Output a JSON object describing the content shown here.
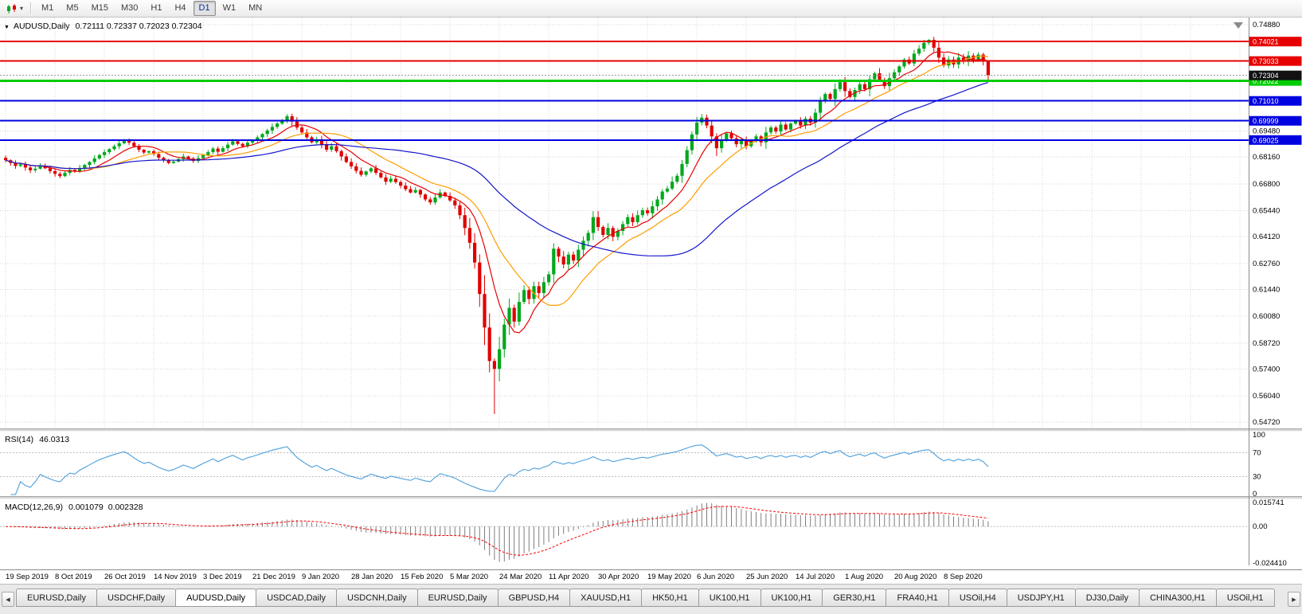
{
  "toolbar": {
    "timeframes": [
      "M1",
      "M5",
      "M15",
      "M30",
      "H1",
      "H4",
      "D1",
      "W1",
      "MN"
    ],
    "active_timeframe": "D1"
  },
  "icons": {
    "dropdown": "▾",
    "header_marker": "▼",
    "scroll_left": "◀",
    "scroll_right": "▶"
  },
  "chart_header": {
    "symbol": "AUDUSD,Daily",
    "ohlc": "0.72111 0.72337 0.72023 0.72304"
  },
  "chart_data": {
    "type": "candlestick",
    "symbol": "AUDUSD",
    "period": "Daily",
    "title": "AUDUSD,Daily",
    "bull_color": "#00A81C",
    "bear_color": "#E00000",
    "grid_color": "#D4D4D4",
    "x_tick_labels": [
      "19 Sep 2019",
      "8 Oct 2019",
      "26 Oct 2019",
      "14 Nov 2019",
      "3 Dec 2019",
      "21 Dec 2019",
      "9 Jan 2020",
      "28 Jan 2020",
      "15 Feb 2020",
      "5 Mar 2020",
      "24 Mar 2020",
      "11 Apr 2020",
      "30 Apr 2020",
      "19 May 2020",
      "6 Jun 2020",
      "25 Jun 2020",
      "14 Jul 2020",
      "1 Aug 2020",
      "20 Aug 2020",
      "8 Sep 2020"
    ],
    "y_axis": {
      "min": 0.5455,
      "max": 0.7508,
      "ticks": [
        {
          "v": 0.7488,
          "label": "0.74880"
        },
        {
          "v": 0.6948,
          "label": "0.69480"
        },
        {
          "v": 0.6816,
          "label": "0.68160"
        },
        {
          "v": 0.668,
          "label": "0.66800"
        },
        {
          "v": 0.6544,
          "label": "0.65440"
        },
        {
          "v": 0.6412,
          "label": "0.64120"
        },
        {
          "v": 0.6276,
          "label": "0.62760"
        },
        {
          "v": 0.6144,
          "label": "0.61440"
        },
        {
          "v": 0.6008,
          "label": "0.60080"
        },
        {
          "v": 0.5872,
          "label": "0.58720"
        },
        {
          "v": 0.574,
          "label": "0.57400"
        },
        {
          "v": 0.5604,
          "label": "0.56040"
        },
        {
          "v": 0.5472,
          "label": "0.54720"
        }
      ]
    },
    "candles": {
      "first_open": 0.6812,
      "closes": [
        0.68,
        0.6786,
        0.6771,
        0.6779,
        0.6763,
        0.6749,
        0.6757,
        0.6771,
        0.6759,
        0.6745,
        0.6731,
        0.6719,
        0.6736,
        0.6751,
        0.6743,
        0.6761,
        0.6776,
        0.6791,
        0.6809,
        0.6826,
        0.6841,
        0.6856,
        0.6871,
        0.6886,
        0.6901,
        0.6889,
        0.6871,
        0.6853,
        0.6839,
        0.6846,
        0.6831,
        0.6813,
        0.6799,
        0.6786,
        0.6793,
        0.6806,
        0.6819,
        0.6809,
        0.6796,
        0.6811,
        0.6826,
        0.6841,
        0.6859,
        0.6843,
        0.6861,
        0.6879,
        0.6896,
        0.6883,
        0.6871,
        0.6889,
        0.6901,
        0.6916,
        0.6933,
        0.6951,
        0.6969,
        0.6986,
        0.7004,
        0.7023,
        0.6996,
        0.6966,
        0.6941,
        0.6916,
        0.6891,
        0.6906,
        0.6879,
        0.6853,
        0.6871,
        0.6846,
        0.6819,
        0.6791,
        0.6769,
        0.6746,
        0.6726,
        0.6743,
        0.6759,
        0.6736,
        0.6713,
        0.6691,
        0.6706,
        0.6689,
        0.6671,
        0.6653,
        0.6636,
        0.6649,
        0.6626,
        0.6601,
        0.6586,
        0.6611,
        0.6636,
        0.6619,
        0.6596,
        0.6571,
        0.6521,
        0.6456,
        0.6381,
        0.6281,
        0.6121,
        0.5951,
        0.5781,
        0.5741,
        0.5841,
        0.5966,
        0.6051,
        0.5981,
        0.6081,
        0.6141,
        0.6096,
        0.6161,
        0.6126,
        0.6181,
        0.6221,
        0.6351,
        0.6311,
        0.6271,
        0.6321,
        0.6291,
        0.6346,
        0.6391,
        0.6431,
        0.6511,
        0.6461,
        0.6421,
        0.6456,
        0.6411,
        0.6441,
        0.6476,
        0.6511,
        0.6486,
        0.6521,
        0.6546,
        0.6531,
        0.6566,
        0.6601,
        0.6641,
        0.6656,
        0.6691,
        0.6721,
        0.6781,
        0.6851,
        0.6931,
        0.6991,
        0.7016,
        0.6976,
        0.6921,
        0.6861,
        0.6901,
        0.6936,
        0.6911,
        0.6881,
        0.6906,
        0.6871,
        0.6896,
        0.6921,
        0.6891,
        0.6941,
        0.6966,
        0.6946,
        0.6981,
        0.6956,
        0.6986,
        0.7001,
        0.6976,
        0.7011,
        0.6991,
        0.7041,
        0.7106,
        0.7136,
        0.7111,
        0.7161,
        0.7196,
        0.7151,
        0.7121,
        0.7156,
        0.7186,
        0.7161,
        0.7211,
        0.7241,
        0.7206,
        0.7176,
        0.7216,
        0.7246,
        0.7276,
        0.7311,
        0.7291,
        0.7341,
        0.7366,
        0.7396,
        0.7411,
        0.7371,
        0.7321,
        0.7281,
        0.7311,
        0.7286,
        0.7321,
        0.7301,
        0.7331,
        0.7311,
        0.7336,
        0.7306,
        0.72304
      ],
      "wick_overrides": [
        {
          "i": 99,
          "low": 0.5512
        },
        {
          "i": 187,
          "high": 0.7414
        },
        {
          "i": 199,
          "low": 0.72023,
          "high": 0.72337
        }
      ]
    },
    "overlays": {
      "moving_averages": [
        {
          "period": 8,
          "color": "#E60000"
        },
        {
          "period": 17,
          "color": "#FF9D00"
        },
        {
          "period": 45,
          "color": "#1414CC"
        }
      ],
      "horizontal_lines": [
        {
          "value": 0.74021,
          "label": "0.74021",
          "color": "#E60000",
          "width": 2
        },
        {
          "value": 0.73033,
          "label": "0.73033",
          "color": "#E60000",
          "width": 2
        },
        {
          "value": 0.72022,
          "label": "0.72022",
          "color": "#00CC00",
          "width": 3
        },
        {
          "value": 0.7101,
          "label": "0.71010",
          "color": "#0000E0",
          "width": 2
        },
        {
          "value": 0.69999,
          "label": "0.69999",
          "color": "#0000E0",
          "width": 2
        },
        {
          "value": 0.69025,
          "label": "0.69025",
          "color": "#0000E0",
          "width": 2
        }
      ],
      "current_price": {
        "value": 0.72304,
        "label": "0.72304",
        "box_color": "#111111",
        "line_color": "#9a9a9a"
      }
    },
    "indicators": {
      "rsi": {
        "name": "RSI(14)",
        "value": "46.0313",
        "period": 14,
        "color": "#4D9FDC",
        "level_upper": 70,
        "level_lower": 30,
        "axis_labels": [
          {
            "v": 100,
            "label": "100"
          },
          {
            "v": 70,
            "label": "70"
          },
          {
            "v": 30,
            "label": "30"
          },
          {
            "v": 0,
            "label": "0"
          }
        ]
      },
      "macd": {
        "name": "MACD(12,26,9)",
        "macd_value": "0.001079",
        "signal_value": "0.002328",
        "fast": 12,
        "slow": 26,
        "signal": 9,
        "histogram_color": "#7E7E7E",
        "signal_color": "#FF0000",
        "range": {
          "min": -0.02441,
          "max": 0.015741
        },
        "axis_labels": [
          {
            "v": 0.015741,
            "label": "0.015741"
          },
          {
            "v": 0,
            "label": "0.00"
          },
          {
            "v": -0.02441,
            "label": "-0.024410"
          }
        ]
      }
    }
  },
  "tabs": {
    "active_index": 2,
    "items": [
      "EURUSD,Daily",
      "USDCHF,Daily",
      "AUDUSD,Daily",
      "USDCAD,Daily",
      "USDCNH,Daily",
      "EURUSD,Daily",
      "GBPUSD,H4",
      "XAUUSD,H1",
      "HK50,H1",
      "UK100,H1",
      "UK100,H1",
      "GER30,H1",
      "FRA40,H1",
      "USOil,H4",
      "USDJPY,H1",
      "DJ30,Daily",
      "CHINA300,H1",
      "USOil,H1"
    ]
  }
}
